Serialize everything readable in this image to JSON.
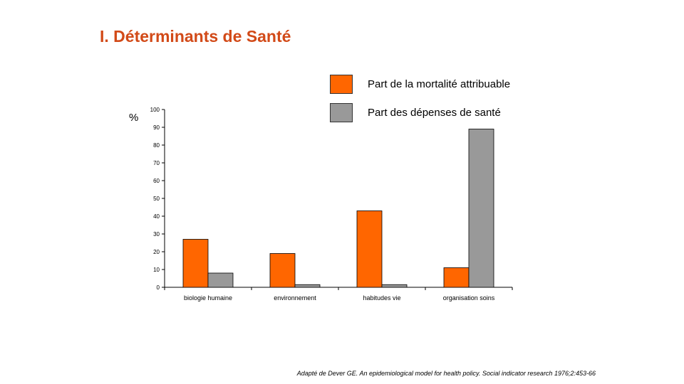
{
  "slide": {
    "title": "I. Déterminants de Santé",
    "source": "Adapté de Dever GE. An epidemiological model for health policy. Social indicator research 1976;2:453-66"
  },
  "chart_data": {
    "type": "bar",
    "title": "",
    "ylabel": "%",
    "xlabel": "",
    "categories": [
      "biologie humaine",
      "environnement",
      "habitudes vie",
      "organisation soins"
    ],
    "series": [
      {
        "name": "Part de la mortalité attribuable",
        "color": "#ff6600",
        "values": [
          27,
          19,
          43,
          11
        ]
      },
      {
        "name": "Part des dépenses de santé",
        "color": "#999999",
        "values": [
          8,
          1.5,
          1.5,
          89
        ]
      }
    ],
    "ylim": [
      0,
      100
    ],
    "yticks": [
      0,
      10,
      20,
      30,
      40,
      50,
      60,
      70,
      80,
      90,
      100
    ],
    "grid": false,
    "legend_position": "top-right"
  }
}
